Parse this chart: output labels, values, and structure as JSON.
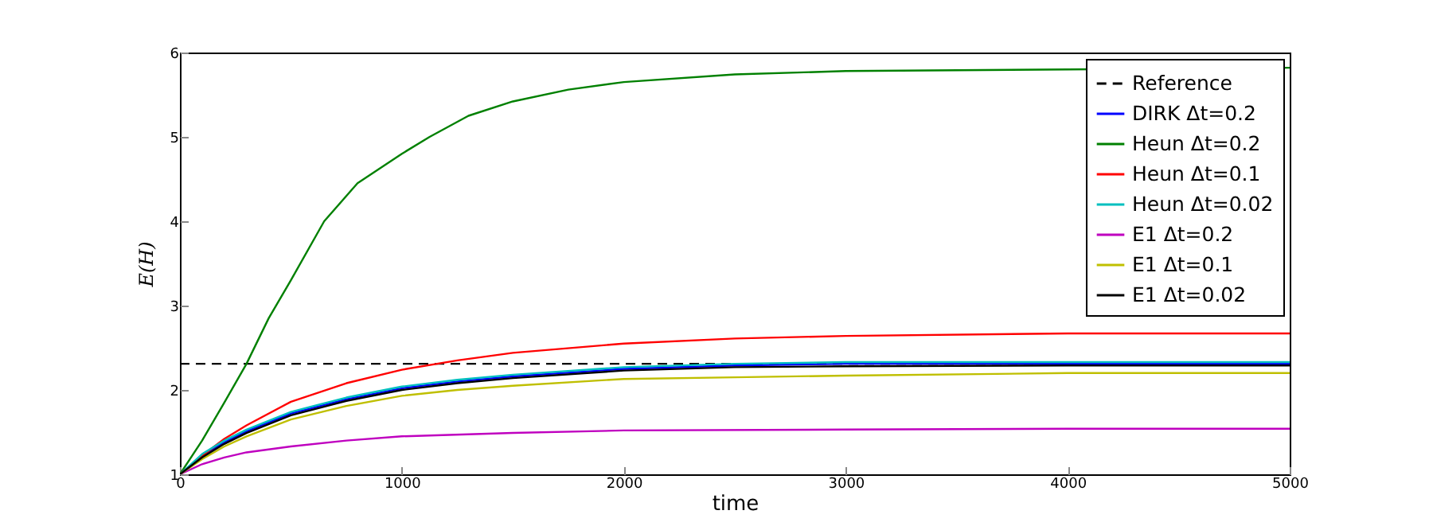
{
  "chart_data": {
    "type": "line",
    "xlabel": "time",
    "ylabel": "E(H)",
    "xlim": [
      0,
      5000
    ],
    "ylim": [
      1,
      6
    ],
    "xticks": [
      0,
      1000,
      2000,
      3000,
      4000,
      5000
    ],
    "yticks": [
      1,
      2,
      3,
      4,
      5,
      6
    ],
    "grid": false,
    "legend": "top right",
    "marker": "none",
    "series": [
      {
        "name": "Reference",
        "color": "#000000",
        "line_style": "dashed",
        "x": [
          0,
          5000
        ],
        "values": [
          2.31,
          2.31
        ]
      },
      {
        "name": "DIRK Δt=0.2",
        "color": "#0000ff",
        "x": [
          0,
          100,
          200,
          300,
          500,
          750,
          1000,
          1250,
          1500,
          2000,
          2500,
          3000,
          4000,
          5000
        ],
        "values": [
          1,
          1.22,
          1.38,
          1.51,
          1.72,
          1.89,
          2.02,
          2.1,
          2.16,
          2.25,
          2.29,
          2.31,
          2.31,
          2.31
        ]
      },
      {
        "name": "Heun Δt=0.2",
        "color": "#008000",
        "x": [
          0,
          100,
          200,
          300,
          400,
          500,
          650,
          800,
          1000,
          1125,
          1300,
          1500,
          1750,
          2000,
          2500,
          3000,
          4000,
          5000
        ],
        "values": [
          1,
          1.4,
          1.85,
          2.31,
          2.85,
          3.3,
          4.0,
          4.45,
          4.8,
          5.0,
          5.25,
          5.42,
          5.56,
          5.65,
          5.74,
          5.78,
          5.8,
          5.82
        ]
      },
      {
        "name": "Heun Δt=0.1",
        "color": "#ff0000",
        "x": [
          0,
          100,
          200,
          300,
          500,
          750,
          1000,
          1250,
          1500,
          2000,
          2500,
          3000,
          4000,
          5000
        ],
        "values": [
          1,
          1.22,
          1.42,
          1.58,
          1.86,
          2.08,
          2.24,
          2.35,
          2.44,
          2.55,
          2.61,
          2.64,
          2.67,
          2.67
        ]
      },
      {
        "name": "Heun Δt=0.02",
        "color": "#00bfbf",
        "x": [
          0,
          100,
          200,
          300,
          500,
          750,
          1000,
          1250,
          1500,
          2000,
          2500,
          3000,
          4000,
          5000
        ],
        "values": [
          1,
          1.24,
          1.4,
          1.53,
          1.74,
          1.91,
          2.04,
          2.12,
          2.18,
          2.27,
          2.31,
          2.33,
          2.33,
          2.33
        ]
      },
      {
        "name": "E1 Δt=0.2",
        "color": "#bf00bf",
        "x": [
          0,
          100,
          200,
          300,
          500,
          750,
          1000,
          1500,
          2000,
          3000,
          4000,
          5000
        ],
        "values": [
          1,
          1.12,
          1.2,
          1.26,
          1.33,
          1.4,
          1.45,
          1.49,
          1.52,
          1.53,
          1.54,
          1.54
        ]
      },
      {
        "name": "E1 Δt=0.1",
        "color": "#bfbf00",
        "x": [
          0,
          100,
          200,
          300,
          500,
          750,
          1000,
          1250,
          1500,
          2000,
          2500,
          3000,
          4000,
          5000
        ],
        "values": [
          1,
          1.18,
          1.33,
          1.45,
          1.65,
          1.81,
          1.93,
          2.0,
          2.05,
          2.13,
          2.15,
          2.17,
          2.2,
          2.2
        ]
      },
      {
        "name": "E1 Δt=0.02",
        "color": "#000000",
        "x": [
          0,
          100,
          200,
          300,
          500,
          750,
          1000,
          1250,
          1500,
          2000,
          2500,
          3000,
          4000,
          5000
        ],
        "values": [
          1,
          1.2,
          1.36,
          1.49,
          1.7,
          1.87,
          2.0,
          2.08,
          2.14,
          2.23,
          2.27,
          2.28,
          2.29,
          2.29
        ]
      }
    ]
  }
}
